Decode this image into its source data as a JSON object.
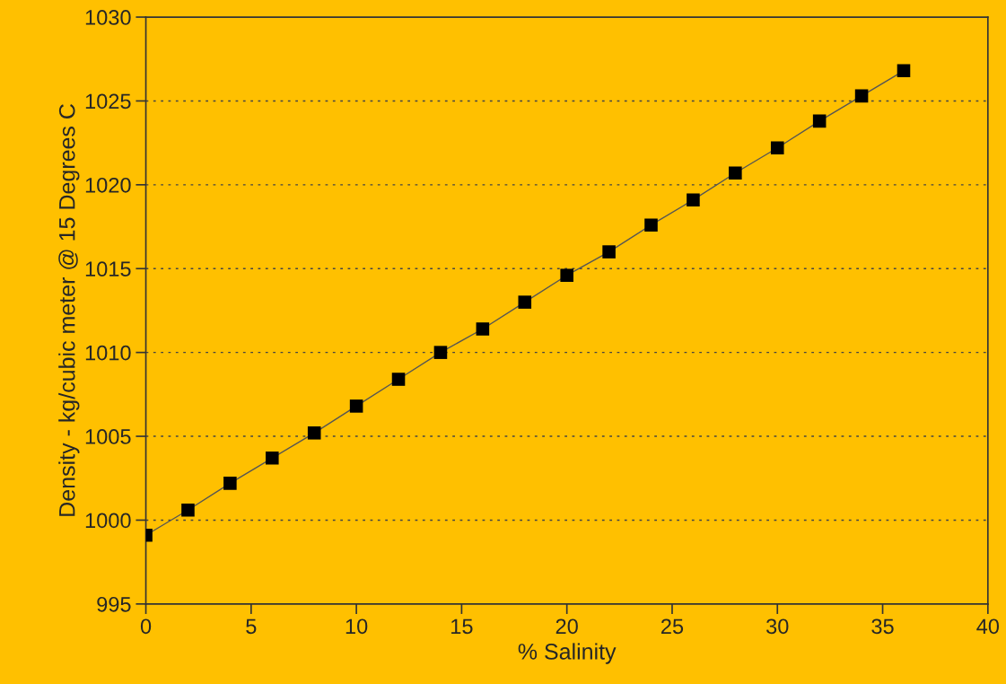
{
  "chart_data": {
    "type": "line",
    "xlabel": "% Salinity",
    "ylabel": "Density - kg/cubic meter @ 15 Degrees C",
    "x": [
      0,
      2,
      4,
      6,
      8,
      10,
      12,
      14,
      16,
      18,
      20,
      22,
      24,
      26,
      28,
      30,
      32,
      34,
      36
    ],
    "series": [
      {
        "color": "#000000",
        "values": [
          999.1,
          1000.6,
          1002.2,
          1003.7,
          1005.2,
          1006.8,
          1008.4,
          1010.0,
          1011.4,
          1013.0,
          1014.6,
          1016.0,
          1017.6,
          1019.1,
          1020.7,
          1022.2,
          1023.8,
          1025.3,
          1026.8
        ]
      }
    ],
    "xlim": [
      0,
      40
    ],
    "xticks": [
      0,
      5,
      10,
      15,
      20,
      25,
      30,
      35,
      40
    ],
    "ylim": [
      995,
      1030
    ],
    "yticks": [
      995,
      1000,
      1005,
      1010,
      1015,
      1020,
      1025,
      1030
    ],
    "grid": "y",
    "marker": "square",
    "line_style": "solid",
    "legend": false
  }
}
